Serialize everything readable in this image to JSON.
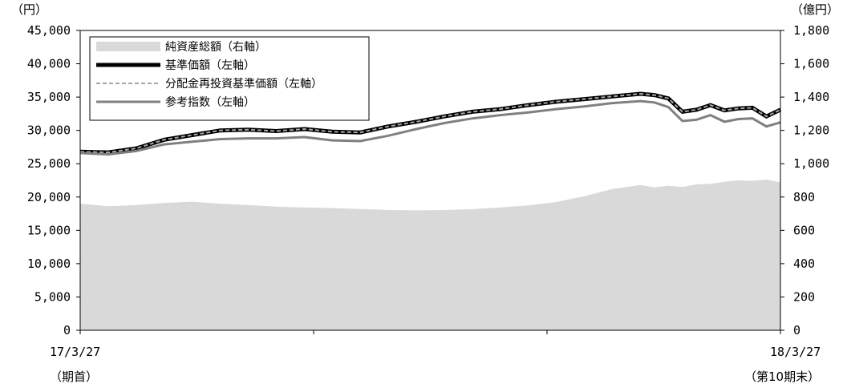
{
  "chart_data": {
    "type": "line",
    "left_unit": "（円）",
    "right_unit": "（億円）",
    "left_axis": {
      "min": 0,
      "max": 45000,
      "step": 5000,
      "ticks": [
        "0",
        "5,000",
        "10,000",
        "15,000",
        "20,000",
        "25,000",
        "30,000",
        "35,000",
        "40,000",
        "45,000"
      ]
    },
    "right_axis": {
      "min": 0,
      "max": 1800,
      "step": 200,
      "ticks": [
        "0",
        "200",
        "400",
        "600",
        "800",
        "1,000",
        "1,200",
        "1,400",
        "1,600",
        "1,800"
      ]
    },
    "x_start": {
      "date": "17/3/27",
      "note": "（期首）"
    },
    "x_end": {
      "date": "18/3/27",
      "note": "（第10期末）"
    },
    "legend_position": "top-left",
    "x": [
      0,
      0.04,
      0.08,
      0.12,
      0.16,
      0.2,
      0.24,
      0.28,
      0.32,
      0.36,
      0.4,
      0.44,
      0.48,
      0.52,
      0.56,
      0.6,
      0.64,
      0.68,
      0.72,
      0.76,
      0.8,
      0.82,
      0.84,
      0.86,
      0.88,
      0.9,
      0.92,
      0.94,
      0.96,
      0.98,
      1.0
    ],
    "series": [
      {
        "name": "純資産総額（右軸）",
        "axis": "right",
        "style": "area",
        "color": "#d9d9d9",
        "values": [
          760,
          745,
          752,
          765,
          772,
          760,
          752,
          742,
          737,
          734,
          728,
          722,
          720,
          722,
          727,
          738,
          750,
          770,
          805,
          848,
          872,
          858,
          868,
          860,
          876,
          880,
          892,
          900,
          897,
          905,
          888
        ]
      },
      {
        "name": "基準価額（左軸）",
        "axis": "left",
        "style": "line",
        "color": "#000000",
        "values": [
          26800,
          26700,
          27300,
          28600,
          29300,
          30000,
          30100,
          29900,
          30200,
          29800,
          29700,
          30600,
          31300,
          32100,
          32800,
          33200,
          33800,
          34300,
          34700,
          35100,
          35500,
          35300,
          34800,
          32800,
          33100,
          33800,
          33000,
          33300,
          33400,
          32100,
          33100
        ]
      },
      {
        "name": "分配金再投資基準価額（左軸）",
        "axis": "left",
        "style": "dashed",
        "color": "#a6a6a6",
        "values": [
          26800,
          26700,
          27300,
          28600,
          29300,
          30000,
          30100,
          29900,
          30200,
          29800,
          29700,
          30600,
          31300,
          32100,
          32800,
          33200,
          33800,
          34300,
          34700,
          35100,
          35500,
          35300,
          34800,
          32800,
          33100,
          33800,
          33000,
          33300,
          33400,
          32100,
          33100
        ]
      },
      {
        "name": "参考指数（左軸）",
        "axis": "left",
        "style": "line",
        "color": "#808080",
        "values": [
          26600,
          26400,
          26900,
          27900,
          28300,
          28700,
          28800,
          28800,
          29000,
          28500,
          28400,
          29200,
          30200,
          31100,
          31800,
          32300,
          32700,
          33200,
          33600,
          34100,
          34400,
          34200,
          33500,
          31400,
          31600,
          32300,
          31300,
          31700,
          31800,
          30600,
          31200
        ]
      }
    ]
  }
}
